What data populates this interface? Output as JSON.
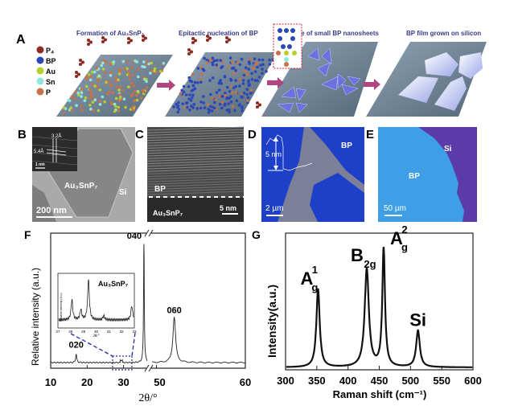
{
  "panelA": {
    "letter": "A",
    "steps": [
      "Formation of Au₃SnP₇",
      "Epitactic nucleation of BP",
      "Fuse of small BP nanosheets",
      "BP film grown on silicon"
    ],
    "legend": [
      {
        "label": "P₄",
        "color": "#8e2a24"
      },
      {
        "label": "BP",
        "color": "#2b48b8"
      },
      {
        "label": "Au",
        "color": "#b7cf2a"
      },
      {
        "label": "Sn",
        "color": "#8fe8e0"
      },
      {
        "label": "P",
        "color": "#c8724a"
      }
    ],
    "arrow_color": "#b0457f"
  },
  "panelB": {
    "letter": "B",
    "inset_d1": "3.2Å",
    "inset_d2": "5.4Å",
    "inset_scale": "1 nm",
    "label_crystal": "Au₃SnP₇",
    "label_substrate": "Si",
    "scale": "200 nm"
  },
  "panelC": {
    "letter": "C",
    "top_label": "BP",
    "bottom_label": "Au₃SnP₇",
    "scale": "5 nm"
  },
  "panelD": {
    "letter": "D",
    "label": "BP",
    "height": "5 nm",
    "scale": "2 µm"
  },
  "panelE": {
    "letter": "E",
    "label_bp": "BP",
    "label_si": "Si",
    "scale": "50 µm"
  },
  "chart_data": [
    {
      "panel": "F",
      "type": "line",
      "xlabel": "2θ/°",
      "ylabel": "Relative intensity (a.u.)",
      "x_ticks": [
        "10",
        "20",
        "30",
        "50",
        "60"
      ],
      "xlim_segments": [
        [
          10,
          36.5
        ],
        [
          49.5,
          60
        ]
      ],
      "axis_break": true,
      "peaks": [
        {
          "label": "020",
          "x": 17.0,
          "y": 0.07
        },
        {
          "label": "040",
          "x": 35.6,
          "y": 1.0
        },
        {
          "label": "060",
          "x": 52.0,
          "y": 0.38
        }
      ],
      "inset": {
        "title": "Au₃SnP₇",
        "xlabel": "2θ/°",
        "ylabel": "Relative intensity (a.u.)",
        "x_ticks": [
          "27",
          "28",
          "29",
          "30",
          "31",
          "32",
          "33"
        ],
        "xlim": [
          27,
          33
        ],
        "peaks": [
          {
            "x": 28.1,
            "y": 0.5
          },
          {
            "x": 28.8,
            "y": 0.25
          },
          {
            "x": 29.4,
            "y": 1.0
          },
          {
            "x": 30.6,
            "y": 0.1
          },
          {
            "x": 32.8,
            "y": 0.35
          }
        ]
      }
    },
    {
      "panel": "G",
      "type": "line",
      "xlabel": "Raman shift (cm⁻¹)",
      "ylabel": "Intensity(a.u.)",
      "xlim": [
        300,
        600
      ],
      "x_ticks": [
        "300",
        "350",
        "400",
        "450",
        "500",
        "550",
        "600"
      ],
      "peaks": [
        {
          "label": "A",
          "sub": "g",
          "sup": "1",
          "x": 352,
          "y": 0.66
        },
        {
          "label": "B",
          "sub": "2g",
          "sup": "",
          "x": 430,
          "y": 0.83
        },
        {
          "label": "A",
          "sub": "g",
          "sup": "2",
          "x": 457,
          "y": 1.0
        },
        {
          "label": "Si",
          "sub": "",
          "sup": "",
          "x": 512,
          "y": 0.31
        }
      ]
    }
  ]
}
